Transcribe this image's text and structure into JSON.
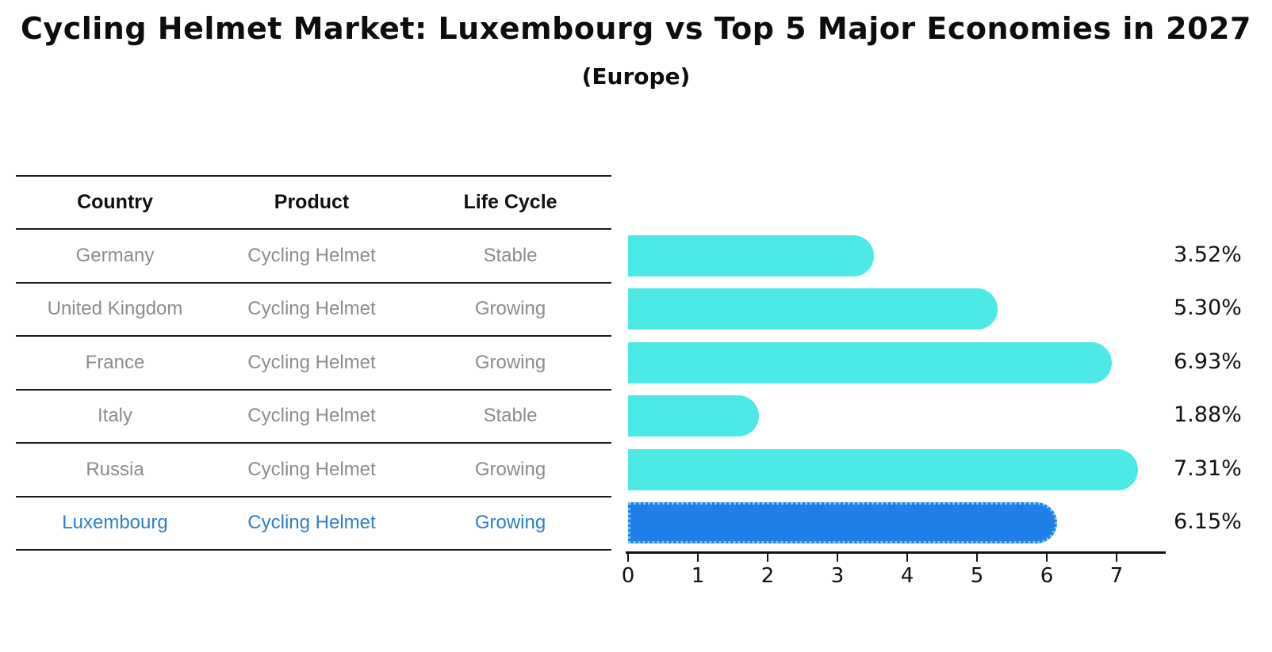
{
  "title": "Cycling Helmet Market: Luxembourg vs Top 5 Major Economies in 2027",
  "subtitle": "(Europe)",
  "table": {
    "headers": [
      "Country",
      "Product",
      "Life Cycle"
    ],
    "rows": [
      {
        "country": "Germany",
        "product": "Cycling Helmet",
        "life_cycle": "Stable",
        "highlight": false
      },
      {
        "country": "United Kingdom",
        "product": "Cycling Helmet",
        "life_cycle": "Growing",
        "highlight": false
      },
      {
        "country": "France",
        "product": "Cycling Helmet",
        "life_cycle": "Growing",
        "highlight": false
      },
      {
        "country": "Italy",
        "product": "Cycling Helmet",
        "life_cycle": "Stable",
        "highlight": false
      },
      {
        "country": "Russia",
        "product": "Cycling Helmet",
        "life_cycle": "Growing",
        "highlight": false
      },
      {
        "country": "Luxembourg",
        "product": "Cycling Helmet",
        "life_cycle": "Growing",
        "highlight": true
      }
    ]
  },
  "chart_data": {
    "type": "bar",
    "orientation": "horizontal",
    "title": "Cycling Helmet Market: Luxembourg vs Top 5 Major Economies in 2027 (Europe)",
    "categories": [
      "Germany",
      "United Kingdom",
      "France",
      "Italy",
      "Russia",
      "Luxembourg"
    ],
    "values": [
      3.52,
      5.3,
      6.93,
      1.88,
      7.31,
      6.15
    ],
    "value_labels": [
      "3.52%",
      "5.30%",
      "6.93%",
      "1.88%",
      "7.31%",
      "6.15%"
    ],
    "xticks": [
      "0",
      "1",
      "2",
      "3",
      "4",
      "5",
      "6",
      "7"
    ],
    "xlim": [
      0,
      7.7
    ],
    "xlabel": "",
    "ylabel": "",
    "grid": false,
    "legend": false,
    "highlight_index": 5
  },
  "colors": {
    "bar": "#4DE9E6",
    "highlight_bar": "#1E7FE8",
    "highlight_border": "#7FC0F4",
    "highlight_text": "#2E7EC8",
    "row_text": "#8C8C8C",
    "header_text": "#111111",
    "line": "#1A1A1A"
  }
}
